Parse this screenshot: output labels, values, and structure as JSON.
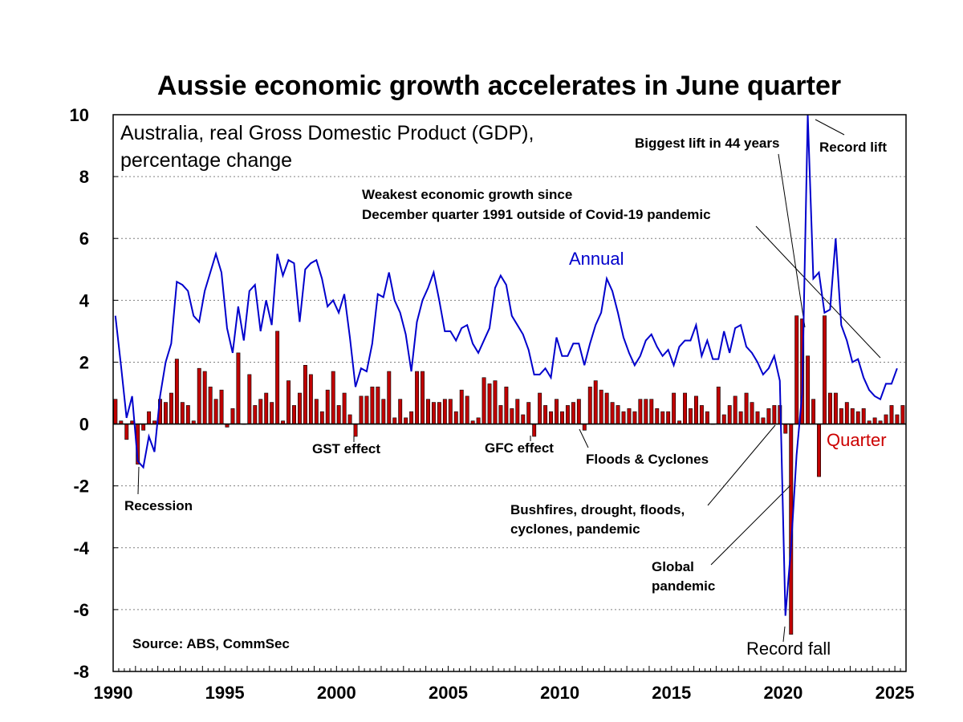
{
  "chart_data": {
    "type": "bar+line",
    "title": "Aussie economic growth accelerates in June quarter",
    "subtitle_lines": [
      "Australia, real Gross Domestic Product (GDP),",
      "percentage change"
    ],
    "source": "Source: ABS, CommSec",
    "xlabel": "",
    "ylabel": "",
    "ylim": [
      -8,
      10
    ],
    "yticks": [
      "10",
      "8",
      "6",
      "4",
      "2",
      "0",
      "-2",
      "-4",
      "-6",
      "-8"
    ],
    "xlim": [
      1990,
      2025.5
    ],
    "xticks": [
      "1990",
      "1995",
      "2000",
      "2005",
      "2010",
      "2015",
      "2020",
      "2025"
    ],
    "colors": {
      "quarter": "#c00000",
      "quarter_edge": "#000000",
      "annual": "#0000cc",
      "grid": "#808080"
    },
    "series": [
      {
        "name": "Quarter",
        "type": "bar",
        "start_year": 1990,
        "step": 0.25,
        "values": [
          0.8,
          0.1,
          -0.5,
          0.1,
          -1.3,
          -0.2,
          0.4,
          0.1,
          0.8,
          0.7,
          1.0,
          2.1,
          0.7,
          0.6,
          0.1,
          1.8,
          1.7,
          1.2,
          0.8,
          1.1,
          -0.1,
          0.5,
          2.3,
          0.0,
          1.6,
          0.6,
          0.8,
          1.0,
          0.7,
          3.0,
          0.1,
          1.4,
          0.6,
          1.0,
          1.9,
          1.6,
          0.8,
          0.4,
          1.1,
          1.7,
          0.6,
          1.0,
          0.3,
          -0.4,
          0.9,
          0.9,
          1.2,
          1.2,
          0.8,
          1.7,
          0.2,
          0.8,
          0.2,
          0.4,
          1.7,
          1.7,
          0.8,
          0.7,
          0.7,
          0.8,
          0.8,
          0.4,
          1.1,
          0.9,
          0.1,
          0.2,
          1.5,
          1.3,
          1.4,
          0.6,
          1.2,
          0.5,
          0.8,
          0.3,
          0.7,
          -0.4,
          1.0,
          0.6,
          0.4,
          0.8,
          0.4,
          0.6,
          0.7,
          0.8,
          -0.2,
          1.2,
          1.4,
          1.1,
          1.0,
          0.7,
          0.6,
          0.4,
          0.5,
          0.4,
          0.8,
          0.8,
          0.8,
          0.5,
          0.4,
          0.4,
          1.0,
          0.1,
          1.0,
          0.5,
          0.9,
          0.6,
          0.4,
          0.0,
          1.2,
          0.3,
          0.6,
          0.9,
          0.4,
          1.0,
          0.7,
          0.4,
          0.2,
          0.5,
          0.6,
          0.6,
          -0.3,
          -6.8,
          3.5,
          3.4,
          2.2,
          0.8,
          -1.7,
          3.5,
          1.0,
          1.0,
          0.5,
          0.7,
          0.5,
          0.4,
          0.5,
          0.1,
          0.2,
          0.1,
          0.3,
          0.6,
          0.3,
          0.6
        ]
      },
      {
        "name": "Annual",
        "type": "line",
        "start_year": 1990,
        "step": 0.25,
        "values": [
          3.5,
          1.9,
          0.2,
          0.9,
          -1.2,
          -1.4,
          -0.4,
          -0.9,
          0.9,
          2.0,
          2.6,
          4.6,
          4.5,
          4.3,
          3.5,
          3.3,
          4.3,
          4.9,
          5.5,
          4.9,
          3.1,
          2.3,
          3.8,
          2.7,
          4.3,
          4.5,
          3.0,
          4.0,
          3.2,
          5.5,
          4.8,
          5.3,
          5.2,
          3.3,
          5.0,
          5.2,
          5.3,
          4.7,
          3.8,
          4.0,
          3.6,
          4.2,
          2.8,
          1.2,
          1.8,
          1.7,
          2.6,
          4.2,
          4.1,
          4.9,
          4.0,
          3.6,
          2.9,
          1.7,
          3.3,
          4.0,
          4.4,
          4.9,
          4.0,
          3.0,
          3.0,
          2.7,
          3.1,
          3.2,
          2.6,
          2.3,
          2.7,
          3.1,
          4.4,
          4.8,
          4.5,
          3.5,
          3.2,
          2.9,
          2.4,
          1.6,
          1.6,
          1.8,
          1.5,
          2.8,
          2.2,
          2.2,
          2.6,
          2.6,
          1.9,
          2.6,
          3.2,
          3.6,
          4.7,
          4.3,
          3.6,
          2.8,
          2.3,
          1.9,
          2.2,
          2.7,
          2.9,
          2.5,
          2.2,
          2.4,
          1.9,
          2.5,
          2.7,
          2.7,
          3.2,
          2.2,
          2.7,
          2.1,
          2.1,
          3.0,
          2.3,
          3.1,
          3.2,
          2.5,
          2.3,
          2.0,
          1.6,
          1.8,
          2.2,
          1.4,
          -6.2,
          -4.0,
          -1.0,
          1.0,
          10.0,
          4.7,
          4.9,
          3.6,
          3.7,
          6.0,
          3.2,
          2.7,
          2.0,
          2.1,
          1.5,
          1.1,
          0.9,
          0.8,
          1.3,
          1.3,
          1.8
        ]
      }
    ],
    "series_labels": {
      "annual": "Annual",
      "quarter": "Quarter"
    },
    "annotations": [
      {
        "id": "recession",
        "text": "Recession"
      },
      {
        "id": "gst",
        "text": "GST effect"
      },
      {
        "id": "gfc",
        "text": "GFC effect"
      },
      {
        "id": "floods",
        "text": "Floods & Cyclones"
      },
      {
        "id": "weakest",
        "lines": [
          "Weakest economic growth since",
          "December quarter 1991 outside of Covid-19 pandemic"
        ]
      },
      {
        "id": "biggest",
        "text": "Biggest lift in 44 years"
      },
      {
        "id": "record-lift",
        "text": "Record lift"
      },
      {
        "id": "bushfires",
        "lines": [
          "Bushfires, drought, floods,",
          "cyclones, pandemic"
        ]
      },
      {
        "id": "global-pandemic",
        "lines": [
          "Global",
          "pandemic"
        ]
      },
      {
        "id": "record-fall",
        "text": "Record fall"
      }
    ]
  }
}
